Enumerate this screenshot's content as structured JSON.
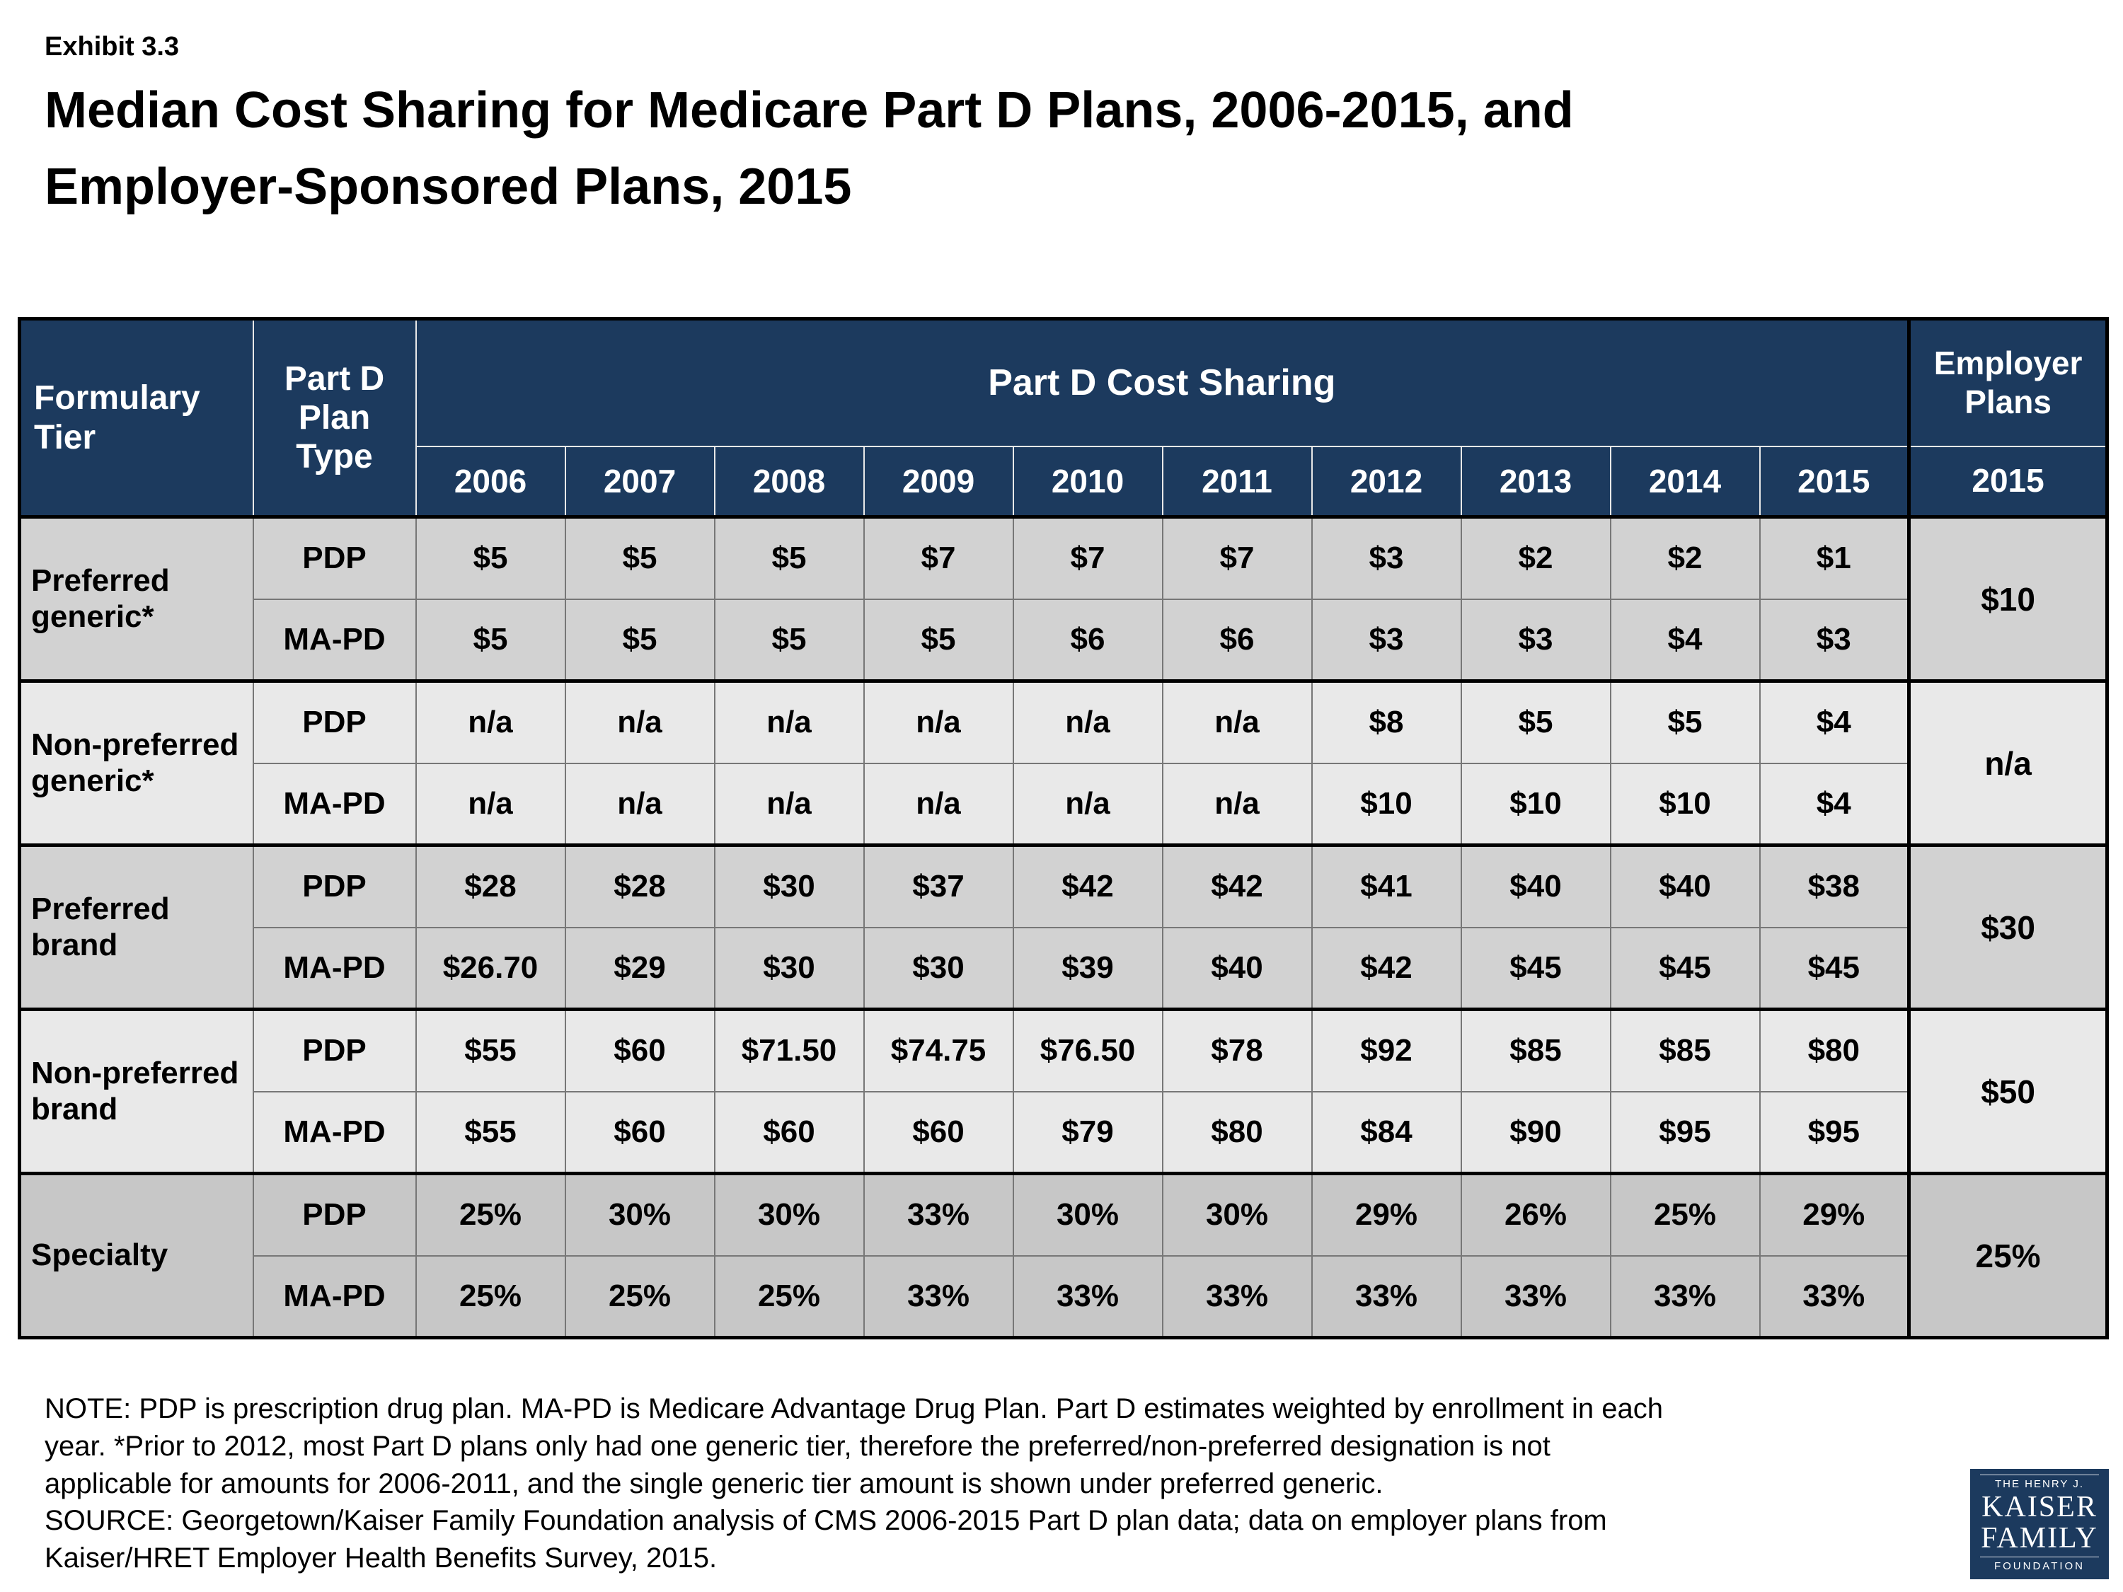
{
  "exhibit_label": "Exhibit 3.3",
  "title_line1": "Median Cost Sharing for Medicare Part D Plans, 2006-2015, and",
  "title_line2": "Employer-Sponsored Plans, 2015",
  "table": {
    "col_headers": {
      "formulary_tier": "Formulary Tier",
      "plan_type": "Part D Plan Type",
      "part_d_cost_sharing": "Part D Cost Sharing",
      "employer_plans": "Employer Plans",
      "employer_year": "2015",
      "years": [
        "2006",
        "2007",
        "2008",
        "2009",
        "2010",
        "2011",
        "2012",
        "2013",
        "2014",
        "2015"
      ]
    },
    "groups": [
      {
        "tier": "Preferred generic*",
        "employer": "$10",
        "rows": [
          {
            "plan": "PDP",
            "values": [
              "$5",
              "$5",
              "$5",
              "$7",
              "$7",
              "$7",
              "$3",
              "$2",
              "$2",
              "$1"
            ]
          },
          {
            "plan": "MA-PD",
            "values": [
              "$5",
              "$5",
              "$5",
              "$5",
              "$6",
              "$6",
              "$3",
              "$3",
              "$4",
              "$3"
            ]
          }
        ]
      },
      {
        "tier": "Non-preferred generic*",
        "employer": "n/a",
        "rows": [
          {
            "plan": "PDP",
            "values": [
              "n/a",
              "n/a",
              "n/a",
              "n/a",
              "n/a",
              "n/a",
              "$8",
              "$5",
              "$5",
              "$4"
            ]
          },
          {
            "plan": "MA-PD",
            "values": [
              "n/a",
              "n/a",
              "n/a",
              "n/a",
              "n/a",
              "n/a",
              "$10",
              "$10",
              "$10",
              "$4"
            ]
          }
        ]
      },
      {
        "tier": "Preferred brand",
        "employer": "$30",
        "rows": [
          {
            "plan": "PDP",
            "values": [
              "$28",
              "$28",
              "$30",
              "$37",
              "$42",
              "$42",
              "$41",
              "$40",
              "$40",
              "$38"
            ]
          },
          {
            "plan": "MA-PD",
            "values": [
              "$26.70",
              "$29",
              "$30",
              "$30",
              "$39",
              "$40",
              "$42",
              "$45",
              "$45",
              "$45"
            ]
          }
        ]
      },
      {
        "tier": "Non-preferred brand",
        "employer": "$50",
        "rows": [
          {
            "plan": "PDP",
            "values": [
              "$55",
              "$60",
              "$71.50",
              "$74.75",
              "$76.50",
              "$78",
              "$92",
              "$85",
              "$85",
              "$80"
            ]
          },
          {
            "plan": "MA-PD",
            "values": [
              "$55",
              "$60",
              "$60",
              "$60",
              "$79",
              "$80",
              "$84",
              "$90",
              "$95",
              "$95"
            ]
          }
        ]
      },
      {
        "tier": "Specialty",
        "employer": "25%",
        "rows": [
          {
            "plan": "PDP",
            "values": [
              "25%",
              "30%",
              "30%",
              "33%",
              "30%",
              "30%",
              "29%",
              "26%",
              "25%",
              "29%"
            ]
          },
          {
            "plan": "MA-PD",
            "values": [
              "25%",
              "25%",
              "25%",
              "33%",
              "33%",
              "33%",
              "33%",
              "33%",
              "33%",
              "33%"
            ]
          }
        ]
      }
    ]
  },
  "note": "NOTE: PDP is prescription drug plan. MA-PD is Medicare Advantage Drug Plan. Part D estimates weighted by enrollment in each\nyear. *Prior to 2012, most Part D plans only had one generic tier, therefore the preferred/non-preferred designation is not\napplicable for amounts for 2006-2011, and the single generic tier amount is shown under preferred generic.",
  "source": "SOURCE: Georgetown/Kaiser Family Foundation analysis of CMS 2006-2015 Part D plan data; data on employer plans from\nKaiser/HRET Employer Health Benefits Survey, 2015.",
  "logo": {
    "line1": "THE HENRY J.",
    "line2": "KAISER",
    "line3": "FAMILY",
    "line4": "FOUNDATION"
  },
  "colors": {
    "navy": "#1c3a5e",
    "border_black": "#000000",
    "grid_gray": "#777777",
    "row_shades": [
      "#d2d2d2",
      "#e9e9e9",
      "#d2d2d2",
      "#e9e9e9",
      "#c7c7c7"
    ]
  }
}
